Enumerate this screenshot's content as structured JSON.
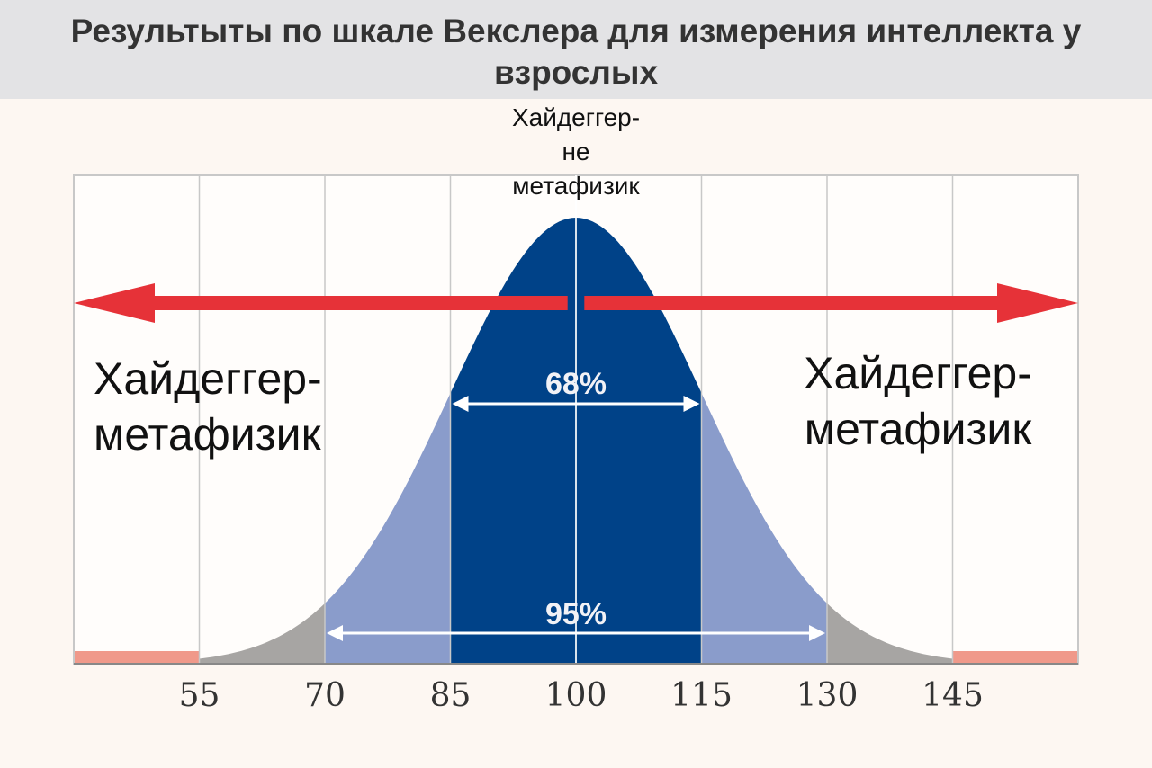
{
  "title": "Результыты по шкале Векслера для измерения интеллекта у взрослых",
  "annotations": {
    "top": "Хайдеггер-\nне\nметафизик",
    "left": "Хайдеггер-\nметафизик",
    "right": "Хайдеггер-\nметафизик"
  },
  "colors": {
    "header_bg": "#e3e3e5",
    "dark_blue": "#004288",
    "light_blue": "#8a9ccb",
    "gray": "#a7a5a3",
    "pink": "#f0998a",
    "arrow_red": "#e63238",
    "grid": "#c8c8c8",
    "tick_text": "#333333"
  },
  "chart_data": {
    "type": "area",
    "distribution": "normal",
    "mean": 100,
    "sd": 15,
    "x_ticks": [
      55,
      70,
      85,
      100,
      115,
      130,
      145
    ],
    "xlim": [
      40,
      160
    ],
    "bands": [
      {
        "from": 85,
        "to": 115,
        "color": "dark_blue"
      },
      {
        "from": 70,
        "to": 85,
        "color": "light_blue"
      },
      {
        "from": 115,
        "to": 130,
        "color": "light_blue"
      },
      {
        "from": 55,
        "to": 70,
        "color": "gray"
      },
      {
        "from": 130,
        "to": 145,
        "color": "gray"
      },
      {
        "from": 40,
        "to": 55,
        "color": "pink"
      },
      {
        "from": 145,
        "to": 160,
        "color": "pink"
      }
    ],
    "ranges": [
      {
        "label": "68%",
        "from": 85,
        "to": 115
      },
      {
        "label": "95%",
        "from": 70,
        "to": 130
      }
    ],
    "arrows": [
      {
        "direction": "left",
        "from": 99,
        "to": 40
      },
      {
        "direction": "right",
        "from": 101,
        "to": 160
      }
    ],
    "grid": true
  }
}
